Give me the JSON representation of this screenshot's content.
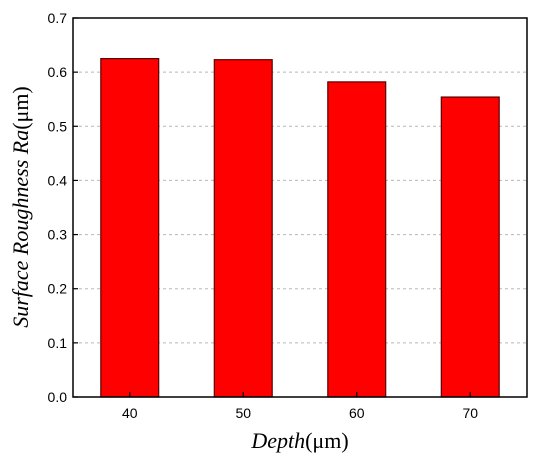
{
  "chart_data": {
    "type": "bar",
    "categories": [
      "40",
      "50",
      "60",
      "70"
    ],
    "values": [
      0.625,
      0.623,
      0.582,
      0.554
    ],
    "ylim": [
      0.0,
      0.7
    ],
    "yticks": [
      "0.0",
      "0.1",
      "0.2",
      "0.3",
      "0.4",
      "0.5",
      "0.6",
      "0.7"
    ],
    "xlabel_italic": "Depth",
    "xlabel_unit": "(μm)",
    "ylabel_italic": "Surface Roughness Ra",
    "ylabel_unit": "(μm)",
    "grid": true,
    "bar_color": "#fe0000",
    "bar_edge_color": "#5a0000"
  }
}
